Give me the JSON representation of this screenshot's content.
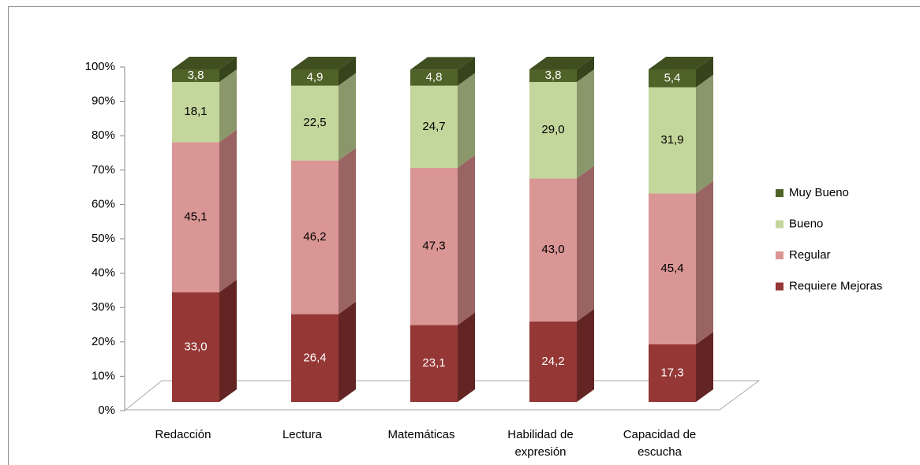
{
  "chart_data": {
    "type": "stacked_bar_3d",
    "categories": [
      "Redacción",
      "Lectura",
      "Matemáticas",
      "Habilidad de expresión",
      "Capacidad de escucha"
    ],
    "series": [
      {
        "name": "Requiere Mejoras",
        "color": "#953735",
        "side_color": "#632523",
        "label_color": "#ffffff",
        "values": [
          33.0,
          26.4,
          23.1,
          24.2,
          17.3
        ],
        "value_labels": [
          "33,0",
          "26,4",
          "23,1",
          "24,2",
          "17,3"
        ]
      },
      {
        "name": "Regular",
        "color": "#d99694",
        "side_color": "#9a6462",
        "label_color": "#000000",
        "values": [
          45.1,
          46.2,
          47.3,
          43.0,
          45.4
        ],
        "value_labels": [
          "45,1",
          "46,2",
          "47,3",
          "43,0",
          "45,4"
        ]
      },
      {
        "name": "Bueno",
        "color": "#c3d69b",
        "side_color": "#89976b",
        "label_color": "#000000",
        "values": [
          18.1,
          22.5,
          24.7,
          29.0,
          31.9
        ],
        "value_labels": [
          "18,1",
          "22,5",
          "24,7",
          "29,0",
          "31,9"
        ]
      },
      {
        "name": "Muy Bueno",
        "color": "#4f6228",
        "side_color": "#36441b",
        "top_color": "#3f4f20",
        "label_color": "#ffffff",
        "values": [
          3.8,
          4.9,
          4.8,
          3.8,
          5.4
        ],
        "value_labels": [
          "3,8",
          "4,9",
          "4,8",
          "3,8",
          "5,4"
        ]
      }
    ],
    "ylim": [
      0,
      100
    ],
    "yticks": [
      {
        "value": 0,
        "label": "0%"
      },
      {
        "value": 10,
        "label": "10%"
      },
      {
        "value": 20,
        "label": "20%"
      },
      {
        "value": 30,
        "label": "30%"
      },
      {
        "value": 40,
        "label": "40%"
      },
      {
        "value": 50,
        "label": "50%"
      },
      {
        "value": 60,
        "label": "60%"
      },
      {
        "value": 70,
        "label": "70%"
      },
      {
        "value": 80,
        "label": "80%"
      },
      {
        "value": 90,
        "label": "90%"
      },
      {
        "value": 100,
        "label": "100%"
      }
    ],
    "legend": "right"
  }
}
